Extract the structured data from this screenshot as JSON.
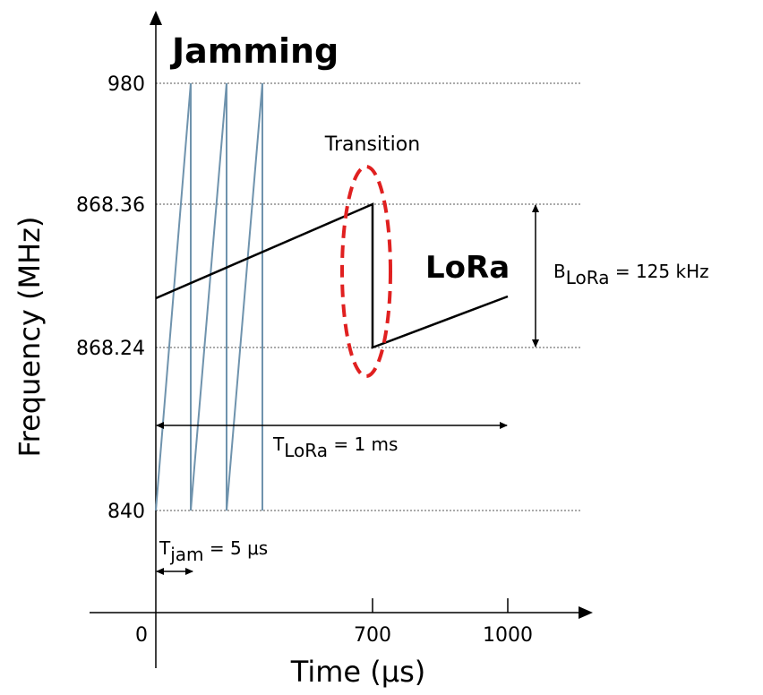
{
  "title": "Jamming",
  "y_axis": {
    "label": "Frequency (MHz)",
    "ticks": [
      "980",
      "868.36",
      "868.24",
      "840"
    ]
  },
  "x_axis": {
    "label": "Time (μs)",
    "ticks": [
      "0",
      "700",
      "1000"
    ]
  },
  "annotations": {
    "transition": "Transition",
    "lora": "LoRa",
    "b_lora": {
      "prefix": "B",
      "sub": "LoRa",
      "suffix": " = 125 kHz"
    },
    "t_lora": {
      "prefix": "T",
      "sub": "LoRa",
      "suffix": " = 1 ms"
    },
    "t_jam": {
      "prefix": "T",
      "sub": "jam",
      "suffix": " = 5 μs"
    }
  },
  "colors": {
    "jamming": "#6f93ad",
    "lora": "#000000",
    "transition": "#e02020",
    "gridline": "#555555"
  }
}
